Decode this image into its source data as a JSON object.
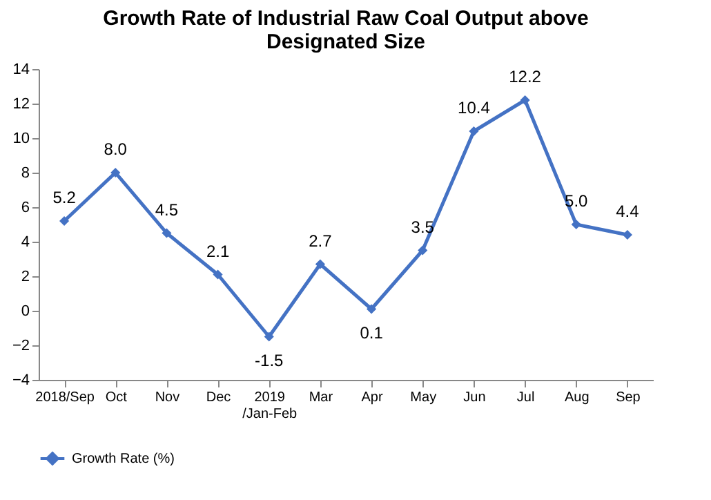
{
  "chart_data": {
    "type": "line",
    "title": "Growth Rate of Industrial Raw Coal Output above\nDesignated Size",
    "categories": [
      "2018/Sep",
      "Oct",
      "Nov",
      "Dec",
      "2019\n/Jan-Feb",
      "Mar",
      "Apr",
      "May",
      "Jun",
      "Jul",
      "Aug",
      "Sep"
    ],
    "series": [
      {
        "name": "Growth Rate (%)",
        "color": "#4472c4",
        "values": [
          5.2,
          8.0,
          4.5,
          2.1,
          -1.5,
          2.7,
          0.1,
          3.5,
          10.4,
          12.2,
          5.0,
          4.4
        ]
      }
    ],
    "ylim": [
      -4,
      14
    ],
    "yticks": [
      -4,
      -2,
      0,
      2,
      4,
      6,
      8,
      10,
      12,
      14
    ],
    "value_labels": [
      "5.2",
      "8.0",
      "4.5",
      "2.1",
      "-1.5",
      "2.7",
      "0.1",
      "3.5",
      "10.4",
      "12.2",
      "5.0",
      "4.4"
    ],
    "marker": "diamond",
    "legend": "bottom",
    "grid": false
  }
}
